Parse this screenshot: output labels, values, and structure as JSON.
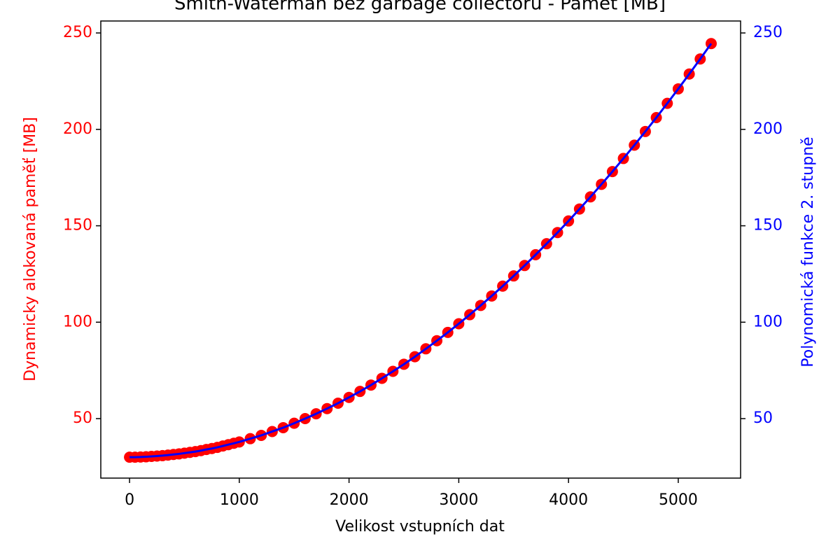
{
  "chart_data": {
    "type": "scatter-line",
    "title": "Smith-Waterman bez garbage collectoru - Paměť [MB]",
    "xlabel": "Velikost vstupních dat",
    "ylabel": "Dynamicky alokovaná paměť [MB]",
    "y2label": "Polynomická funkce 2. stupně",
    "x": [
      0,
      50,
      100,
      150,
      200,
      250,
      300,
      350,
      400,
      450,
      500,
      550,
      600,
      650,
      700,
      750,
      800,
      850,
      900,
      950,
      1000,
      1100,
      1200,
      1300,
      1400,
      1500,
      1600,
      1700,
      1800,
      1900,
      2000,
      2100,
      2200,
      2300,
      2400,
      2500,
      2600,
      2700,
      2800,
      2900,
      3000,
      3100,
      3200,
      3300,
      3400,
      3500,
      3600,
      3700,
      3800,
      3900,
      4000,
      4100,
      4200,
      4300,
      4400,
      4500,
      4600,
      4700,
      4800,
      4900,
      5000,
      5100,
      5200,
      5300
    ],
    "series": [
      {
        "color": "#ff0000",
        "mark": "point",
        "values": [
          30.0,
          30.0,
          30.1,
          30.2,
          30.4,
          30.6,
          30.8,
          31.1,
          31.4,
          31.7,
          32.1,
          32.5,
          32.9,
          33.4,
          34.0,
          34.5,
          35.1,
          35.8,
          36.5,
          37.2,
          37.9,
          39.6,
          41.3,
          43.3,
          45.3,
          47.6,
          50.0,
          52.5,
          55.2,
          58.0,
          61.0,
          64.1,
          67.4,
          70.9,
          74.5,
          78.2,
          82.1,
          86.2,
          90.4,
          94.7,
          99.2,
          103.9,
          108.7,
          113.6,
          118.7,
          124.0,
          129.4,
          135.0,
          140.7,
          146.5,
          152.5,
          158.7,
          165.0,
          171.5,
          178.1,
          184.9,
          191.8,
          198.9,
          206.1,
          213.5,
          221.0,
          228.7,
          236.5,
          244.5
        ]
      },
      {
        "color": "#0000ff",
        "mark": "line",
        "axis": "y2",
        "values": [
          30.0,
          30.0,
          30.1,
          30.2,
          30.4,
          30.6,
          30.8,
          31.1,
          31.4,
          31.7,
          32.1,
          32.5,
          32.9,
          33.4,
          34.0,
          34.5,
          35.1,
          35.8,
          36.5,
          37.2,
          37.9,
          39.6,
          41.3,
          43.3,
          45.3,
          47.6,
          50.0,
          52.5,
          55.2,
          58.0,
          61.0,
          64.1,
          67.4,
          70.9,
          74.5,
          78.2,
          82.1,
          86.2,
          90.4,
          94.7,
          99.2,
          103.9,
          108.7,
          113.6,
          118.7,
          124.0,
          129.4,
          135.0,
          140.7,
          146.5,
          152.5,
          158.7,
          165.0,
          171.5,
          178.1,
          184.9,
          191.8,
          198.9,
          206.1,
          213.5,
          221.0,
          228.7,
          236.5,
          244.5
        ]
      }
    ],
    "xlim": [
      -262,
      5568
    ],
    "xticks": [
      0,
      1000,
      2000,
      3000,
      4000,
      5000
    ],
    "ylim": [
      19.15,
      256.2
    ],
    "yticks": [
      50,
      100,
      150,
      200,
      250
    ],
    "y2lim": [
      19.15,
      256.2
    ],
    "y2ticks": [
      50,
      100,
      150,
      200,
      250
    ],
    "ycolor": "#ff0000",
    "y2color": "#0000ff"
  }
}
